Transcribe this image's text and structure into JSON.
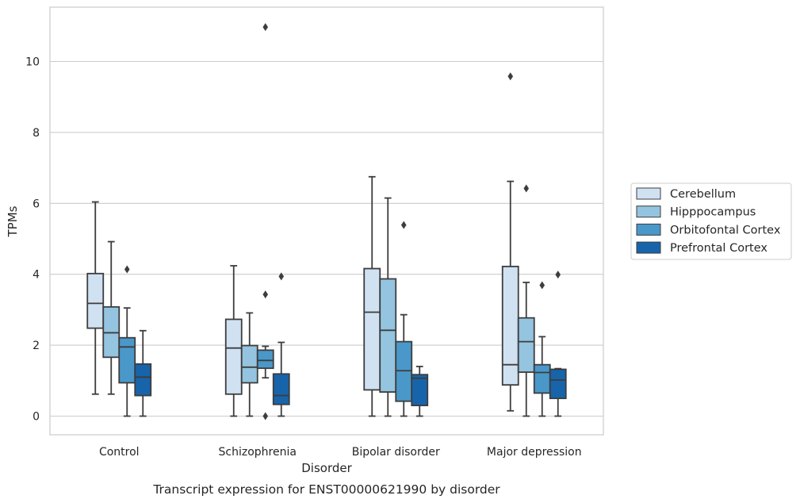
{
  "chart_data": {
    "type": "box",
    "caption": "Transcript expression for ENST00000621990 by disorder",
    "xlabel": "Disorder",
    "ylabel": "TPMs",
    "ylim": [
      -0.5,
      11.5
    ],
    "yticks": [
      0,
      2,
      4,
      6,
      8,
      10
    ],
    "grid": "horizontal",
    "legend_position": "right",
    "categories": [
      "Control",
      "Schizophrenia",
      "Bipolar disorder",
      "Major depression"
    ],
    "series": [
      {
        "name": "Cerebellum",
        "color": "#d0e1f2",
        "boxes": [
          {
            "whislo": 0.62,
            "q1": 2.48,
            "med": 3.18,
            "q3": 4.02,
            "whishi": 6.04,
            "fliers": []
          },
          {
            "whislo": 0.0,
            "q1": 0.62,
            "med": 1.92,
            "q3": 2.73,
            "whishi": 4.24,
            "fliers": []
          },
          {
            "whislo": 0.0,
            "q1": 0.74,
            "med": 2.93,
            "q3": 4.16,
            "whishi": 6.75,
            "fliers": []
          },
          {
            "whislo": 0.15,
            "q1": 0.88,
            "med": 1.45,
            "q3": 4.22,
            "whishi": 6.62,
            "fliers": [
              9.58
            ]
          }
        ]
      },
      {
        "name": "Hipppocampus",
        "color": "#94c4df",
        "boxes": [
          {
            "whislo": 0.62,
            "q1": 1.66,
            "med": 2.35,
            "q3": 3.08,
            "whishi": 4.92,
            "fliers": []
          },
          {
            "whislo": 0.0,
            "q1": 0.94,
            "med": 1.38,
            "q3": 1.99,
            "whishi": 2.91,
            "fliers": []
          },
          {
            "whislo": 0.0,
            "q1": 0.68,
            "med": 2.42,
            "q3": 3.87,
            "whishi": 6.15,
            "fliers": []
          },
          {
            "whislo": 0.0,
            "q1": 1.24,
            "med": 2.1,
            "q3": 2.77,
            "whishi": 3.77,
            "fliers": [
              6.42
            ]
          }
        ]
      },
      {
        "name": "Orbitofontal Cortex",
        "color": "#4a98c9",
        "boxes": [
          {
            "whislo": 0.0,
            "q1": 0.94,
            "med": 1.95,
            "q3": 2.21,
            "whishi": 3.05,
            "fliers": [
              4.14
            ]
          },
          {
            "whislo": 1.08,
            "q1": 1.35,
            "med": 1.57,
            "q3": 1.86,
            "whishi": 1.97,
            "fliers": [
              3.43,
              10.97,
              0.0
            ]
          },
          {
            "whislo": 0.0,
            "q1": 0.42,
            "med": 1.28,
            "q3": 2.1,
            "whishi": 2.86,
            "fliers": [
              5.39
            ]
          },
          {
            "whislo": 0.0,
            "q1": 0.65,
            "med": 1.23,
            "q3": 1.45,
            "whishi": 2.24,
            "fliers": [
              3.69
            ]
          }
        ]
      },
      {
        "name": "Prefrontal Cortex",
        "color": "#1764ab",
        "boxes": [
          {
            "whislo": 0.0,
            "q1": 0.58,
            "med": 1.1,
            "q3": 1.47,
            "whishi": 2.41,
            "fliers": []
          },
          {
            "whislo": 0.0,
            "q1": 0.33,
            "med": 0.58,
            "q3": 1.19,
            "whishi": 2.08,
            "fliers": [
              3.94
            ]
          },
          {
            "whislo": 0.0,
            "q1": 0.3,
            "med": 1.07,
            "q3": 1.17,
            "whishi": 1.4,
            "fliers": []
          },
          {
            "whislo": 0.0,
            "q1": 0.5,
            "med": 1.02,
            "q3": 1.32,
            "whishi": 1.34,
            "fliers": [
              3.99
            ]
          }
        ]
      }
    ]
  }
}
